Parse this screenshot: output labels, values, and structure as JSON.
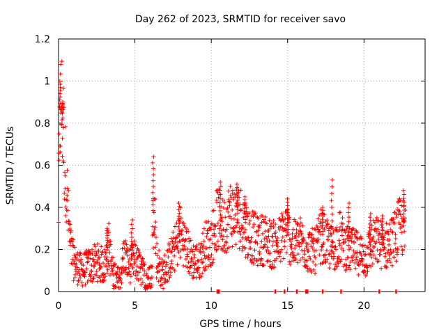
{
  "chart_data": {
    "type": "scatter",
    "title": "Day 262 of 2023, SRMTID for receiver savo",
    "xlabel": "GPS time / hours",
    "ylabel": "SRMTID / TECUs",
    "xlim": [
      0,
      24
    ],
    "ylim": [
      0,
      1.2
    ],
    "xticks": [
      0,
      5,
      10,
      15,
      20
    ],
    "xtick_labels": [
      "0",
      "5",
      "10",
      "15",
      "20"
    ],
    "yticks": [
      0,
      0.2,
      0.4,
      0.6,
      0.8,
      1,
      1.2
    ],
    "ytick_labels": [
      "0",
      "0.2",
      "0.4",
      "0.6",
      "0.8",
      "1",
      "1.2"
    ],
    "grid": true,
    "marker": "plus",
    "color": "#ff0000",
    "series": [
      {
        "name": "savo",
        "trend": [
          [
            0.0,
            0.38
          ],
          [
            0.1,
            0.85
          ],
          [
            0.2,
            0.88
          ],
          [
            0.3,
            0.8
          ],
          [
            0.4,
            0.62
          ],
          [
            0.5,
            0.55
          ],
          [
            0.6,
            0.4
          ],
          [
            0.7,
            0.28
          ],
          [
            0.8,
            0.2
          ],
          [
            1.0,
            0.14
          ],
          [
            1.2,
            0.12
          ],
          [
            1.5,
            0.1
          ],
          [
            2.0,
            0.12
          ],
          [
            2.5,
            0.14
          ],
          [
            3.0,
            0.12
          ],
          [
            3.3,
            0.22
          ],
          [
            3.5,
            0.1
          ],
          [
            3.8,
            0.05
          ],
          [
            4.0,
            0.06
          ],
          [
            4.3,
            0.18
          ],
          [
            4.6,
            0.12
          ],
          [
            5.0,
            0.15
          ],
          [
            5.4,
            0.1
          ],
          [
            5.8,
            0.05
          ],
          [
            6.1,
            0.07
          ],
          [
            6.25,
            0.5
          ],
          [
            6.4,
            0.16
          ],
          [
            6.8,
            0.08
          ],
          [
            7.2,
            0.14
          ],
          [
            7.6,
            0.2
          ],
          [
            8.0,
            0.28
          ],
          [
            8.3,
            0.22
          ],
          [
            8.7,
            0.15
          ],
          [
            9.2,
            0.14
          ],
          [
            9.6,
            0.22
          ],
          [
            10.0,
            0.24
          ],
          [
            10.4,
            0.35
          ],
          [
            10.8,
            0.3
          ],
          [
            11.2,
            0.37
          ],
          [
            11.6,
            0.36
          ],
          [
            12.0,
            0.35
          ],
          [
            12.4,
            0.28
          ],
          [
            13.0,
            0.24
          ],
          [
            13.5,
            0.25
          ],
          [
            14.0,
            0.22
          ],
          [
            14.5,
            0.24
          ],
          [
            14.9,
            0.3
          ],
          [
            15.3,
            0.22
          ],
          [
            15.8,
            0.24
          ],
          [
            16.3,
            0.2
          ],
          [
            16.8,
            0.19
          ],
          [
            17.2,
            0.27
          ],
          [
            17.6,
            0.22
          ],
          [
            18.0,
            0.2
          ],
          [
            18.4,
            0.26
          ],
          [
            18.9,
            0.2
          ],
          [
            19.4,
            0.19
          ],
          [
            19.8,
            0.18
          ],
          [
            20.1,
            0.16
          ],
          [
            20.5,
            0.22
          ],
          [
            20.9,
            0.24
          ],
          [
            21.3,
            0.21
          ],
          [
            21.7,
            0.23
          ],
          [
            22.1,
            0.27
          ],
          [
            22.4,
            0.32
          ],
          [
            22.7,
            0.28
          ]
        ],
        "spikes": [
          [
            0.1,
            1.0
          ],
          [
            0.25,
            0.9
          ],
          [
            3.2,
            0.3
          ],
          [
            4.8,
            0.34
          ],
          [
            6.2,
            0.64
          ],
          [
            7.9,
            0.42
          ],
          [
            10.6,
            0.52
          ],
          [
            11.7,
            0.51
          ],
          [
            12.2,
            0.45
          ],
          [
            15.0,
            0.44
          ],
          [
            17.3,
            0.4
          ],
          [
            17.9,
            0.53
          ],
          [
            19.0,
            0.42
          ],
          [
            20.4,
            0.37
          ],
          [
            21.2,
            0.36
          ],
          [
            22.6,
            0.48
          ]
        ],
        "zero_points": [
          10.4,
          10.5,
          14.2,
          14.8,
          15.6,
          16.2,
          16.3,
          17.3,
          18.5,
          21.0,
          22.1
        ]
      }
    ]
  }
}
